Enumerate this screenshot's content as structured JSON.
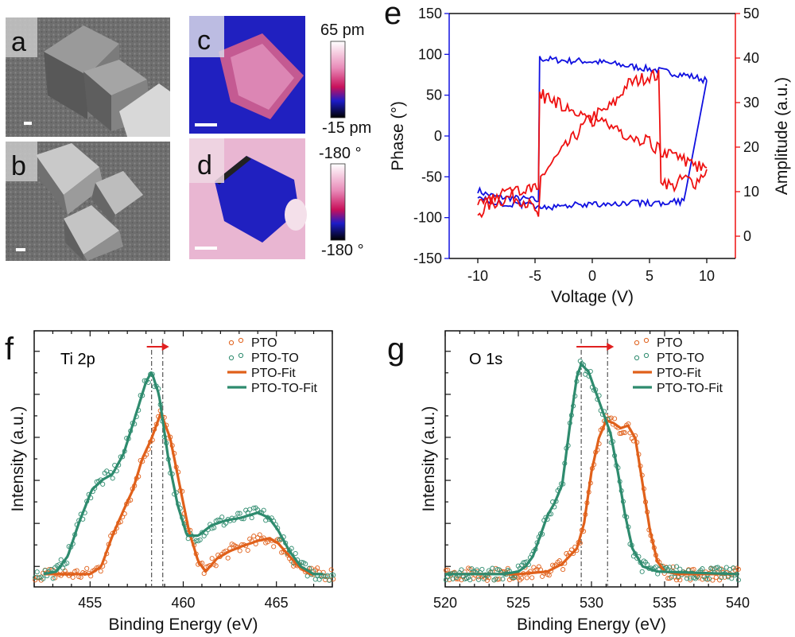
{
  "panels": {
    "a": {
      "letter": "a"
    },
    "b": {
      "letter": "b"
    },
    "c": {
      "letter": "c",
      "scale_max": "65 pm",
      "scale_min": "-15 pm"
    },
    "d": {
      "letter": "d",
      "scale_max": "-180 °",
      "scale_min": "-180 °"
    },
    "e": {
      "letter": "e"
    },
    "f": {
      "letter": "f",
      "annotation": "Ti 2p"
    },
    "g": {
      "letter": "g",
      "annotation": "O 1s"
    }
  },
  "colors": {
    "phase": "#1010e0",
    "amplitude": "#ee1111",
    "pto": "#e0601a",
    "pto_to": "#2e8b6e",
    "arrow": "#e02020"
  },
  "chart_data": [
    {
      "id": "e",
      "type": "line",
      "xlabel": "Voltage (V)",
      "ylabel": "Phase (°)",
      "ylabel_right": "Amplitude (a.u.)",
      "xlim": [
        -12.5,
        12.5
      ],
      "ylim": [
        -150,
        150
      ],
      "ylim_right": [
        -5,
        50
      ],
      "xticks": [
        -10,
        -5,
        0,
        5,
        10
      ],
      "yticks": [
        -150,
        -100,
        -50,
        0,
        50,
        100,
        150
      ],
      "yticks_right": [
        0,
        10,
        20,
        30,
        40,
        50
      ],
      "series": [
        {
          "axis": "left",
          "points": [
            [
              -10,
              -66
            ],
            [
              -9.5,
              -70
            ],
            [
              -9,
              -72
            ],
            [
              -8.5,
              -74
            ],
            [
              -8,
              -75
            ],
            [
              -7,
              -76
            ],
            [
              -6,
              -77
            ],
            [
              -5,
              -78
            ],
            [
              -4.7,
              -80
            ],
            [
              -4.6,
              95
            ],
            [
              -4,
              94
            ],
            [
              -3,
              93
            ],
            [
              -2,
              92
            ],
            [
              -1,
              92
            ],
            [
              0,
              91
            ],
            [
              1,
              90
            ],
            [
              2,
              88
            ],
            [
              3,
              86
            ],
            [
              4,
              84
            ],
            [
              5,
              82
            ],
            [
              6,
              80
            ],
            [
              7,
              77
            ],
            [
              8,
              75
            ],
            [
              9,
              72
            ],
            [
              10,
              68
            ]
          ]
        },
        {
          "axis": "left",
          "points": [
            [
              10,
              68
            ],
            [
              8,
              -80
            ],
            [
              6,
              -82
            ],
            [
              5,
              -82
            ],
            [
              4,
              -82
            ],
            [
              3,
              -83
            ],
            [
              2,
              -84
            ],
            [
              1,
              -84
            ],
            [
              0,
              -85
            ],
            [
              -1,
              -84
            ],
            [
              -2,
              -85
            ],
            [
              -3,
              -86
            ],
            [
              -4,
              -87
            ],
            [
              -5,
              -86
            ],
            [
              -6,
              -84
            ],
            [
              -7,
              -83
            ],
            [
              -8,
              -82
            ],
            [
              -9,
              -80
            ],
            [
              -10,
              -76
            ]
          ]
        },
        {
          "axis": "right",
          "points": [
            [
              -10,
              5
            ],
            [
              -9,
              7
            ],
            [
              -8,
              8
            ],
            [
              -7,
              9
            ],
            [
              -6,
              8
            ],
            [
              -5,
              6
            ],
            [
              -4.7,
              3
            ],
            [
              -4.5,
              13
            ],
            [
              -4,
              15
            ],
            [
              -3,
              18
            ],
            [
              -2,
              21
            ],
            [
              -1,
              24
            ],
            [
              0,
              27
            ],
            [
              1,
              28
            ],
            [
              2,
              30
            ],
            [
              3,
              34
            ],
            [
              4,
              35
            ],
            [
              5,
              36
            ],
            [
              5.8,
              36
            ],
            [
              6,
              13
            ],
            [
              7,
              11
            ],
            [
              8,
              13
            ],
            [
              9,
              12
            ],
            [
              10,
              15
            ]
          ]
        },
        {
          "axis": "right",
          "points": [
            [
              10,
              15
            ],
            [
              9,
              16
            ],
            [
              8,
              17
            ],
            [
              7,
              18
            ],
            [
              6,
              19
            ],
            [
              5,
              21
            ],
            [
              4,
              22
            ],
            [
              3,
              23
            ],
            [
              2,
              24
            ],
            [
              1,
              25
            ],
            [
              0,
              26
            ],
            [
              -1,
              28
            ],
            [
              -2,
              29
            ],
            [
              -3,
              30
            ],
            [
              -4,
              31
            ],
            [
              -4.6,
              32
            ],
            [
              -4.7,
              12
            ],
            [
              -5,
              11
            ],
            [
              -6,
              10
            ],
            [
              -7,
              10
            ],
            [
              -8,
              9
            ],
            [
              -9,
              8
            ],
            [
              -10,
              7
            ]
          ]
        }
      ]
    },
    {
      "id": "f",
      "type": "line",
      "xlabel": "Binding Energy (eV)",
      "ylabel": "Intensity (a.u.)",
      "xlim": [
        452,
        468
      ],
      "ylim": [
        0,
        1
      ],
      "xticks": [
        455,
        460,
        465
      ],
      "vlines": [
        458.3,
        458.9
      ],
      "legend": [
        "PTO",
        "PTO-TO",
        "PTO-Fit",
        "PTO-TO-Fit"
      ],
      "series": [
        {
          "name": "PTO-Fit",
          "points": [
            [
              452.5,
              0.05
            ],
            [
              454,
              0.05
            ],
            [
              455,
              0.05
            ],
            [
              455.6,
              0.08
            ],
            [
              456.2,
              0.2
            ],
            [
              456.8,
              0.3
            ],
            [
              457.3,
              0.38
            ],
            [
              457.8,
              0.5
            ],
            [
              458.3,
              0.58
            ],
            [
              458.8,
              0.68
            ],
            [
              459.3,
              0.58
            ],
            [
              459.8,
              0.4
            ],
            [
              460.3,
              0.22
            ],
            [
              460.8,
              0.1
            ],
            [
              461.2,
              0.06
            ],
            [
              461.8,
              0.11
            ],
            [
              462.5,
              0.14
            ],
            [
              463.2,
              0.16
            ],
            [
              464,
              0.18
            ],
            [
              464.6,
              0.19
            ],
            [
              465.1,
              0.17
            ],
            [
              465.7,
              0.12
            ],
            [
              466.2,
              0.08
            ],
            [
              466.8,
              0.05
            ],
            [
              467.5,
              0.05
            ]
          ]
        },
        {
          "name": "PTO-TO-Fit",
          "points": [
            [
              452.5,
              0.05
            ],
            [
              453.2,
              0.06
            ],
            [
              453.8,
              0.12
            ],
            [
              454.4,
              0.25
            ],
            [
              455.1,
              0.38
            ],
            [
              455.7,
              0.42
            ],
            [
              456.2,
              0.44
            ],
            [
              456.8,
              0.52
            ],
            [
              457.4,
              0.66
            ],
            [
              458,
              0.8
            ],
            [
              458.3,
              0.84
            ],
            [
              458.7,
              0.75
            ],
            [
              459.2,
              0.5
            ],
            [
              459.7,
              0.32
            ],
            [
              460.2,
              0.2
            ],
            [
              460.8,
              0.2
            ],
            [
              461.5,
              0.24
            ],
            [
              462.3,
              0.26
            ],
            [
              463.1,
              0.27
            ],
            [
              464,
              0.29
            ],
            [
              464.6,
              0.27
            ],
            [
              465.1,
              0.22
            ],
            [
              465.7,
              0.14
            ],
            [
              466.3,
              0.08
            ],
            [
              467,
              0.05
            ],
            [
              467.5,
              0.05
            ]
          ]
        }
      ]
    },
    {
      "id": "g",
      "type": "line",
      "xlabel": "Binding Energy (eV)",
      "ylabel": "Intensity (a.u.)",
      "xlim": [
        520,
        540
      ],
      "ylim": [
        0,
        1
      ],
      "xticks": [
        520,
        525,
        530,
        535,
        540
      ],
      "vlines": [
        529.3,
        531.1
      ],
      "legend": [
        "PTO",
        "PTO-TO",
        "PTO-Fit",
        "PTO-TO-Fit"
      ],
      "series": [
        {
          "name": "PTO-Fit",
          "points": [
            [
              520,
              0.05
            ],
            [
              525,
              0.05
            ],
            [
              527,
              0.06
            ],
            [
              528,
              0.09
            ],
            [
              528.5,
              0.12
            ],
            [
              529,
              0.15
            ],
            [
              529.5,
              0.25
            ],
            [
              530,
              0.45
            ],
            [
              530.5,
              0.58
            ],
            [
              531,
              0.65
            ],
            [
              531.5,
              0.64
            ],
            [
              532,
              0.62
            ],
            [
              532.5,
              0.63
            ],
            [
              533,
              0.58
            ],
            [
              533.5,
              0.4
            ],
            [
              534,
              0.22
            ],
            [
              534.5,
              0.1
            ],
            [
              535,
              0.06
            ],
            [
              536,
              0.05
            ],
            [
              540,
              0.05
            ]
          ]
        },
        {
          "name": "PTO-TO-Fit",
          "points": [
            [
              520,
              0.05
            ],
            [
              524,
              0.05
            ],
            [
              525,
              0.06
            ],
            [
              525.5,
              0.08
            ],
            [
              526,
              0.12
            ],
            [
              526.5,
              0.2
            ],
            [
              527,
              0.28
            ],
            [
              527.5,
              0.33
            ],
            [
              528,
              0.4
            ],
            [
              528.5,
              0.62
            ],
            [
              529,
              0.82
            ],
            [
              529.3,
              0.87
            ],
            [
              529.8,
              0.84
            ],
            [
              530.3,
              0.76
            ],
            [
              530.8,
              0.68
            ],
            [
              531.3,
              0.6
            ],
            [
              531.8,
              0.45
            ],
            [
              532.3,
              0.28
            ],
            [
              532.8,
              0.15
            ],
            [
              533.5,
              0.08
            ],
            [
              534.5,
              0.06
            ],
            [
              540,
              0.05
            ]
          ]
        }
      ]
    }
  ]
}
